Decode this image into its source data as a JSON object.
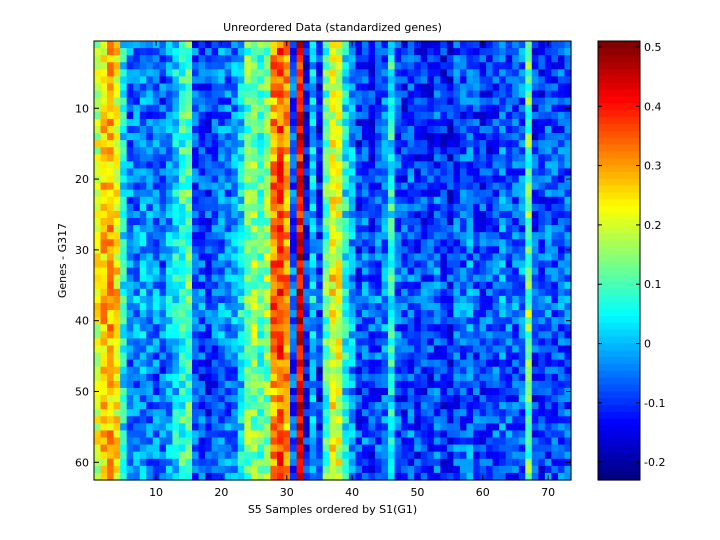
{
  "chart_data": {
    "type": "heatmap",
    "title": "Unreordered Data (standardized genes)",
    "xlabel": "S5 Samples ordered by S1(G1)",
    "ylabel": "Genes - G317",
    "n_cols": 73,
    "n_rows": 62,
    "xlim": [
      0.5,
      73.5
    ],
    "ylim": [
      0.5,
      62.5
    ],
    "x_ticks": [
      10,
      20,
      30,
      40,
      50,
      60,
      70
    ],
    "y_ticks": [
      10,
      20,
      30,
      40,
      50,
      60
    ],
    "colormap": "jet",
    "color_limits": [
      -0.23,
      0.51
    ],
    "colorbar_ticks": [
      -0.2,
      -0.1,
      0,
      0.1,
      0.2,
      0.3,
      0.4,
      0.5
    ],
    "colorbar_tick_labels": [
      "-0.2",
      "-0.1",
      "0",
      "0.1",
      "0.2",
      "0.3",
      "0.4",
      "0.5"
    ],
    "column_profile": {
      "x": [
        1,
        2,
        3,
        4,
        5,
        6,
        7,
        8,
        9,
        10,
        11,
        12,
        13,
        14,
        15,
        16,
        17,
        18,
        19,
        20,
        21,
        22,
        23,
        24,
        25,
        26,
        27,
        28,
        29,
        30,
        31,
        32,
        33,
        34,
        35,
        36,
        37,
        38,
        39,
        40,
        41,
        42,
        43,
        44,
        45,
        46,
        47,
        48,
        49,
        50,
        51,
        52,
        53,
        54,
        55,
        56,
        57,
        58,
        59,
        60,
        61,
        62,
        63,
        64,
        65,
        66,
        67,
        68,
        69,
        70,
        71,
        72,
        73
      ],
      "mean_value": [
        0.2,
        0.26,
        0.28,
        0.23,
        0.05,
        -0.05,
        -0.05,
        -0.03,
        -0.05,
        -0.06,
        -0.07,
        -0.02,
        0.02,
        0.08,
        0.1,
        -0.08,
        -0.08,
        -0.1,
        -0.08,
        -0.05,
        -0.05,
        -0.04,
        0.02,
        0.12,
        0.14,
        0.1,
        0.14,
        0.32,
        0.36,
        0.3,
        -0.08,
        0.42,
        -0.12,
        0.0,
        -0.12,
        0.1,
        0.22,
        0.2,
        0.05,
        -0.02,
        -0.1,
        -0.08,
        -0.1,
        -0.08,
        -0.06,
        0.06,
        -0.08,
        -0.1,
        -0.08,
        -0.1,
        -0.1,
        -0.1,
        -0.08,
        -0.12,
        -0.12,
        -0.08,
        -0.08,
        -0.06,
        -0.08,
        -0.1,
        -0.1,
        -0.08,
        -0.06,
        -0.08,
        -0.08,
        -0.06,
        0.12,
        -0.1,
        -0.1,
        -0.08,
        -0.08,
        -0.08,
        -0.08
      ]
    },
    "row_profile": {
      "y": [
        1,
        10,
        20,
        30,
        35,
        38,
        40,
        42,
        45,
        50,
        55,
        56,
        60,
        62
      ],
      "offset": [
        0.0,
        -0.01,
        0.0,
        0.01,
        0.02,
        0.03,
        0.02,
        0.01,
        0.0,
        -0.01,
        0.0,
        0.01,
        0.0,
        0.0
      ]
    },
    "noise_amplitude": 0.08
  }
}
